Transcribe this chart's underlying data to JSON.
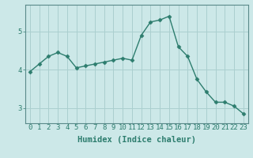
{
  "x": [
    0,
    1,
    2,
    3,
    4,
    5,
    6,
    7,
    8,
    9,
    10,
    11,
    12,
    13,
    14,
    15,
    16,
    17,
    18,
    19,
    20,
    21,
    22,
    23
  ],
  "y": [
    3.95,
    4.15,
    4.35,
    4.45,
    4.35,
    4.05,
    4.1,
    4.15,
    4.2,
    4.25,
    4.3,
    4.25,
    4.9,
    5.25,
    5.3,
    5.4,
    4.6,
    4.35,
    3.75,
    3.42,
    3.15,
    3.15,
    3.05,
    2.85
  ],
  "line_color": "#2d7d6e",
  "marker": "D",
  "marker_size": 2.5,
  "linewidth": 1.0,
  "xlabel": "Humidex (Indice chaleur)",
  "xlabel_fontsize": 7.5,
  "xlabel_bold": true,
  "xlim": [
    -0.5,
    23.5
  ],
  "ylim": [
    2.6,
    5.7
  ],
  "yticks": [
    3,
    4,
    5
  ],
  "xtick_labels": [
    "0",
    "1",
    "2",
    "3",
    "4",
    "5",
    "6",
    "7",
    "8",
    "9",
    "10",
    "11",
    "12",
    "13",
    "14",
    "15",
    "16",
    "17",
    "18",
    "19",
    "20",
    "21",
    "22",
    "23"
  ],
  "grid_color": "#aacfcf",
  "background_color": "#cce8e8",
  "tick_fontsize": 6.5,
  "spine_color": "#5a8a8a"
}
